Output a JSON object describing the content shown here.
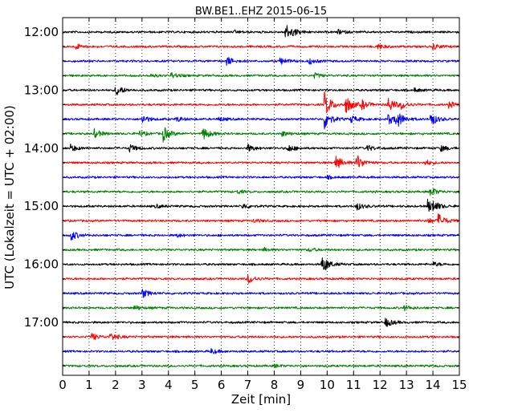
{
  "chart_data": {
    "type": "line",
    "title": "BW.BE1..EHZ 2015-06-15",
    "xlabel": "Zeit  [min]",
    "ylabel": "UTC (Lokalzeit = UTC + 02:00)",
    "xlim": [
      0,
      15
    ],
    "x_ticks": [
      "0",
      "1",
      "2",
      "3",
      "4",
      "5",
      "6",
      "7",
      "8",
      "9",
      "10",
      "11",
      "12",
      "13",
      "14",
      "15"
    ],
    "y_ticks": [
      "12:00",
      "13:00",
      "14:00",
      "15:00",
      "16:00",
      "17:00"
    ],
    "grid": "vertical dotted",
    "trace_colors": [
      "#000000",
      "#ff0000",
      "#0000ff",
      "#008000"
    ],
    "trace_interval_min": 15,
    "traces": [
      {
        "start": "12:00",
        "events": [
          [
            6.5,
            0.15
          ],
          [
            8.4,
            0.95
          ],
          [
            8.7,
            0.2
          ],
          [
            10.4,
            0.25
          ]
        ]
      },
      {
        "start": "12:15",
        "events": [
          [
            0.5,
            0.3
          ],
          [
            11.9,
            0.3
          ],
          [
            14.0,
            0.35
          ]
        ]
      },
      {
        "start": "12:30",
        "events": [
          [
            6.2,
            0.5
          ],
          [
            8.2,
            0.45
          ],
          [
            9.3,
            0.35
          ]
        ]
      },
      {
        "start": "12:45",
        "events": [
          [
            3.3,
            0.2
          ],
          [
            4.1,
            0.35
          ],
          [
            9.5,
            0.3
          ]
        ]
      },
      {
        "start": "13:00",
        "events": [
          [
            2.0,
            0.7
          ],
          [
            13.3,
            0.2
          ]
        ]
      },
      {
        "start": "13:15",
        "events": [
          [
            9.9,
            1.4
          ],
          [
            10.7,
            1.0
          ],
          [
            11.3,
            0.5
          ],
          [
            12.3,
            0.9
          ],
          [
            12.8,
            0.4
          ],
          [
            14.6,
            0.35
          ]
        ]
      },
      {
        "start": "13:30",
        "events": [
          [
            3.0,
            0.5
          ],
          [
            4.3,
            0.3
          ],
          [
            5.9,
            0.25
          ],
          [
            9.9,
            1.1
          ],
          [
            10.9,
            0.4
          ],
          [
            12.3,
            0.6
          ],
          [
            12.6,
            1.0
          ],
          [
            13.9,
            0.8
          ]
        ]
      },
      {
        "start": "13:45",
        "events": [
          [
            1.2,
            0.5
          ],
          [
            2.9,
            0.3
          ],
          [
            3.8,
            0.85
          ],
          [
            5.3,
            0.75
          ],
          [
            8.3,
            0.3
          ]
        ]
      },
      {
        "start": "14:00",
        "events": [
          [
            0.3,
            0.4
          ],
          [
            2.5,
            0.45
          ],
          [
            7.0,
            0.4
          ],
          [
            8.5,
            0.45
          ],
          [
            11.5,
            0.35
          ],
          [
            14.3,
            0.35
          ]
        ]
      },
      {
        "start": "14:15",
        "events": [
          [
            10.3,
            0.85
          ],
          [
            11.1,
            0.95
          ],
          [
            13.7,
            0.3
          ]
        ]
      },
      {
        "start": "14:30",
        "events": [
          [
            10.0,
            0.15
          ]
        ]
      },
      {
        "start": "14:45",
        "events": [
          [
            6.6,
            0.2
          ],
          [
            13.9,
            0.5
          ]
        ]
      },
      {
        "start": "15:00",
        "events": [
          [
            3.5,
            0.2
          ],
          [
            6.8,
            0.35
          ],
          [
            11.1,
            0.45
          ],
          [
            13.8,
            0.75
          ],
          [
            14.0,
            0.4
          ]
        ]
      },
      {
        "start": "15:15",
        "events": [
          [
            7.2,
            0.2
          ],
          [
            14.2,
            0.75
          ],
          [
            13.8,
            0.3
          ]
        ]
      },
      {
        "start": "15:30",
        "events": [
          [
            0.3,
            0.6
          ],
          [
            4.3,
            0.2
          ]
        ]
      },
      {
        "start": "15:45",
        "events": [
          [
            7.6,
            0.2
          ],
          [
            9.3,
            0.2
          ]
        ]
      },
      {
        "start": "16:00",
        "events": [
          [
            9.8,
            1.1
          ],
          [
            14.0,
            0.25
          ]
        ]
      },
      {
        "start": "16:15",
        "events": [
          [
            7.0,
            0.55
          ]
        ]
      },
      {
        "start": "16:30",
        "events": [
          [
            3.0,
            0.5
          ]
        ]
      },
      {
        "start": "16:45",
        "events": [
          [
            2.7,
            0.3
          ],
          [
            12.9,
            0.3
          ]
        ]
      },
      {
        "start": "17:00",
        "events": [
          [
            12.2,
            0.55
          ]
        ]
      },
      {
        "start": "17:15",
        "events": [
          [
            1.1,
            0.4
          ],
          [
            1.8,
            0.45
          ]
        ]
      },
      {
        "start": "17:30",
        "events": [
          [
            5.6,
            0.3
          ]
        ]
      },
      {
        "start": "17:45",
        "events": [
          [
            8.0,
            0.15
          ]
        ]
      }
    ]
  }
}
